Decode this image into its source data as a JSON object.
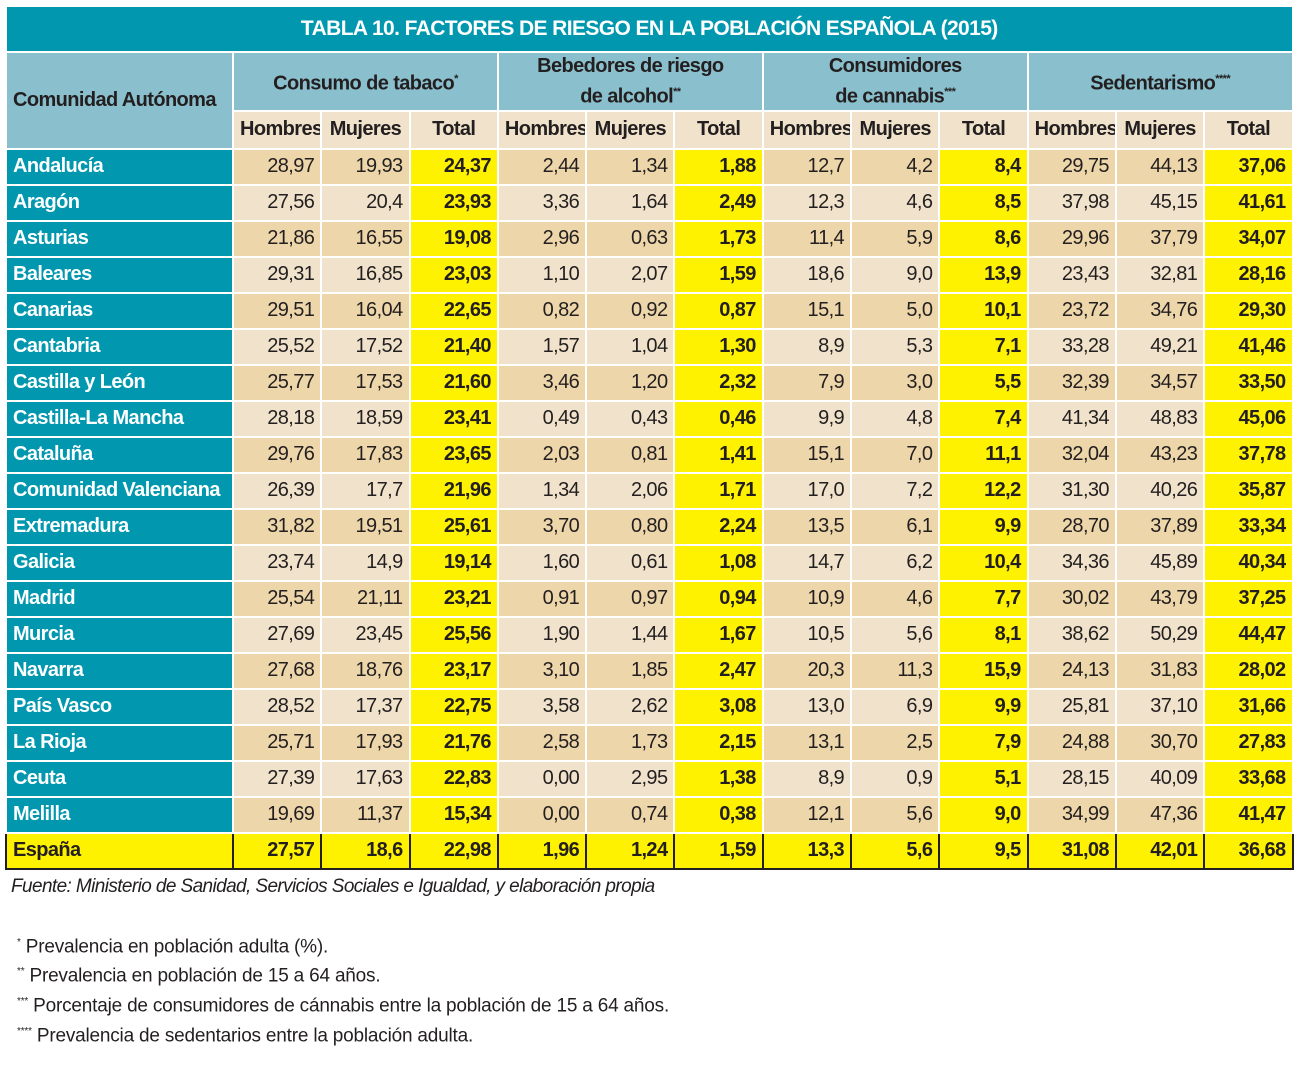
{
  "title": "TABLA 10. FACTORES DE RIESGO EN LA POBLACIÓN ESPAÑOLA (2015)",
  "row_header": "Comunidad Autónoma",
  "groups": [
    {
      "line1": "Consumo de tabaco",
      "line2": "",
      "mark": "*"
    },
    {
      "line1": "Bebedores de riesgo",
      "line2": "de alcohol",
      "mark": "**"
    },
    {
      "line1": "Consumidores",
      "line2": "de cannabis",
      "mark": "***"
    },
    {
      "line1": "Sedentarismo",
      "line2": "",
      "mark": "****"
    }
  ],
  "subheaders": [
    "Hombres",
    "Mujeres",
    "Total"
  ],
  "rows": [
    {
      "name": "Andalucía",
      "values": [
        "28,97",
        "19,93",
        "24,37",
        "2,44",
        "1,34",
        "1,88",
        "12,7",
        "4,2",
        "8,4",
        "29,75",
        "44,13",
        "37,06"
      ]
    },
    {
      "name": "Aragón",
      "values": [
        "27,56",
        "20,4",
        "23,93",
        "3,36",
        "1,64",
        "2,49",
        "12,3",
        "4,6",
        "8,5",
        "37,98",
        "45,15",
        "41,61"
      ]
    },
    {
      "name": "Asturias",
      "values": [
        "21,86",
        "16,55",
        "19,08",
        "2,96",
        "0,63",
        "1,73",
        "11,4",
        "5,9",
        "8,6",
        "29,96",
        "37,79",
        "34,07"
      ]
    },
    {
      "name": "Baleares",
      "values": [
        "29,31",
        "16,85",
        "23,03",
        "1,10",
        "2,07",
        "1,59",
        "18,6",
        "9,0",
        "13,9",
        "23,43",
        "32,81",
        "28,16"
      ]
    },
    {
      "name": "Canarias",
      "values": [
        "29,51",
        "16,04",
        "22,65",
        "0,82",
        "0,92",
        "0,87",
        "15,1",
        "5,0",
        "10,1",
        "23,72",
        "34,76",
        "29,30"
      ]
    },
    {
      "name": "Cantabria",
      "values": [
        "25,52",
        "17,52",
        "21,40",
        "1,57",
        "1,04",
        "1,30",
        "8,9",
        "5,3",
        "7,1",
        "33,28",
        "49,21",
        "41,46"
      ]
    },
    {
      "name": "Castilla y León",
      "values": [
        "25,77",
        "17,53",
        "21,60",
        "3,46",
        "1,20",
        "2,32",
        "7,9",
        "3,0",
        "5,5",
        "32,39",
        "34,57",
        "33,50"
      ]
    },
    {
      "name": "Castilla-La Mancha",
      "values": [
        "28,18",
        "18,59",
        "23,41",
        "0,49",
        "0,43",
        "0,46",
        "9,9",
        "4,8",
        "7,4",
        "41,34",
        "48,83",
        "45,06"
      ]
    },
    {
      "name": "Cataluña",
      "values": [
        "29,76",
        "17,83",
        "23,65",
        "2,03",
        "0,81",
        "1,41",
        "15,1",
        "7,0",
        "11,1",
        "32,04",
        "43,23",
        "37,78"
      ]
    },
    {
      "name": "Comunidad Valenciana",
      "values": [
        "26,39",
        "17,7",
        "21,96",
        "1,34",
        "2,06",
        "1,71",
        "17,0",
        "7,2",
        "12,2",
        "31,30",
        "40,26",
        "35,87"
      ]
    },
    {
      "name": "Extremadura",
      "values": [
        "31,82",
        "19,51",
        "25,61",
        "3,70",
        "0,80",
        "2,24",
        "13,5",
        "6,1",
        "9,9",
        "28,70",
        "37,89",
        "33,34"
      ]
    },
    {
      "name": "Galicia",
      "values": [
        "23,74",
        "14,9",
        "19,14",
        "1,60",
        "0,61",
        "1,08",
        "14,7",
        "6,2",
        "10,4",
        "34,36",
        "45,89",
        "40,34"
      ]
    },
    {
      "name": "Madrid",
      "values": [
        "25,54",
        "21,11",
        "23,21",
        "0,91",
        "0,97",
        "0,94",
        "10,9",
        "4,6",
        "7,7",
        "30,02",
        "43,79",
        "37,25"
      ]
    },
    {
      "name": "Murcia",
      "values": [
        "27,69",
        "23,45",
        "25,56",
        "1,90",
        "1,44",
        "1,67",
        "10,5",
        "5,6",
        "8,1",
        "38,62",
        "50,29",
        "44,47"
      ]
    },
    {
      "name": "Navarra",
      "values": [
        "27,68",
        "18,76",
        "23,17",
        "3,10",
        "1,85",
        "2,47",
        "20,3",
        "11,3",
        "15,9",
        "24,13",
        "31,83",
        "28,02"
      ]
    },
    {
      "name": "País Vasco",
      "values": [
        "28,52",
        "17,37",
        "22,75",
        "3,58",
        "2,62",
        "3,08",
        "13,0",
        "6,9",
        "9,9",
        "25,81",
        "37,10",
        "31,66"
      ]
    },
    {
      "name": "La Rioja",
      "values": [
        "25,71",
        "17,93",
        "21,76",
        "2,58",
        "1,73",
        "2,15",
        "13,1",
        "2,5",
        "7,9",
        "24,88",
        "30,70",
        "27,83"
      ]
    },
    {
      "name": "Ceuta",
      "values": [
        "27,39",
        "17,63",
        "22,83",
        "0,00",
        "2,95",
        "1,38",
        "8,9",
        "0,9",
        "5,1",
        "28,15",
        "40,09",
        "33,68"
      ]
    },
    {
      "name": "Melilla",
      "values": [
        "19,69",
        "11,37",
        "15,34",
        "0,00",
        "0,74",
        "0,38",
        "12,1",
        "5,6",
        "9,0",
        "34,99",
        "47,36",
        "41,47"
      ]
    }
  ],
  "total_row": {
    "name": "España",
    "values": [
      "27,57",
      "18,6",
      "22,98",
      "1,96",
      "1,24",
      "1,59",
      "13,3",
      "5,6",
      "9,5",
      "31,08",
      "42,01",
      "36,68"
    ]
  },
  "source": "Fuente: Ministerio de Sanidad, Servicios Sociales e Igualdad, y elaboración propia",
  "notes": [
    {
      "mark": "*",
      "text": " Prevalencia en población adulta (%)."
    },
    {
      "mark": "**",
      "text": " Prevalencia en población de 15 a 64 años."
    },
    {
      "mark": "***",
      "text": " Porcentaje de consumidores de cánnabis entre la población de 15 a 64 años."
    },
    {
      "mark": "****",
      "text": " Prevalencia de sedentarios entre la población adulta."
    }
  ],
  "colors": {
    "teal": "#0097af",
    "light_blue": "#8ac0cd",
    "tan": "#edd6a9",
    "light_tan": "#f1e3cb",
    "yellow": "#fff200"
  }
}
